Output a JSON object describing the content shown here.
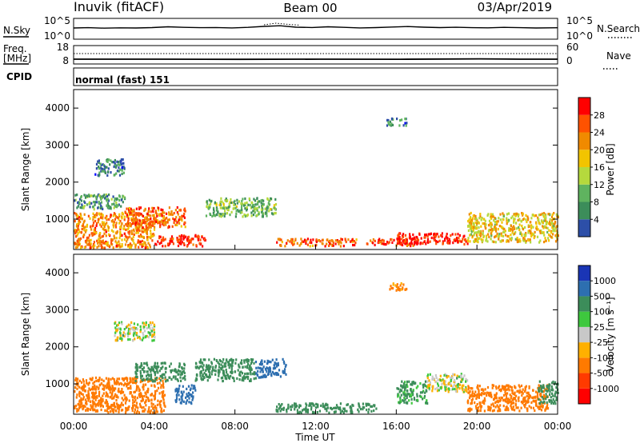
{
  "header": {
    "station": "Inuvik (fitACF)",
    "beam": "Beam 00",
    "date": "03/Apr/2019"
  },
  "noise_panel": {
    "left_label": "N.Sky",
    "right_label": "N.Search",
    "left_ticks": [
      "10^5",
      "10^0"
    ],
    "right_ticks": [
      "10^5",
      "10^0"
    ]
  },
  "freq_panel": {
    "left_label_top": "Freq.",
    "left_label_bottom": "[MHz]",
    "right_label": "Nave",
    "left_ticks": [
      "18",
      "8"
    ],
    "right_ticks": [
      "60",
      "0"
    ]
  },
  "cpid_panel": {
    "label": "CPID",
    "text": "normal (fast) 151"
  },
  "range_axis": {
    "label": "Slant Range [km]",
    "ticks": [
      1000,
      2000,
      3000,
      4000
    ],
    "ylim": [
      180,
      4500
    ]
  },
  "time_axis": {
    "label": "Time UT",
    "ticks": [
      "00:00",
      "04:00",
      "08:00",
      "12:00",
      "16:00",
      "20:00",
      "00:00"
    ],
    "xlim_hours": [
      0,
      24
    ]
  },
  "colors": {
    "power_scale": [
      "#0000ff",
      "#2d4fa8",
      "#3c8d5a",
      "#5fb35f",
      "#b5d93d",
      "#f2c400",
      "#f08a00",
      "#ff5200",
      "#ff0000"
    ],
    "velocity_scale": [
      "#ff0000",
      "#ff3a00",
      "#ff7a00",
      "#ffb000",
      "#c8c8c8",
      "#3ec83e",
      "#3c8d5a",
      "#2d6fb0",
      "#1a35b5"
    ]
  },
  "chart_data": [
    {
      "type": "heatmap",
      "name": "power",
      "colorbar_label": "Power [dB]",
      "colorbar_ticks": [
        "4",
        "8",
        "12",
        "16",
        "20",
        "24",
        "28"
      ],
      "colorbar_range": [
        0,
        30
      ],
      "x_unit": "hours UT",
      "y_unit": "km",
      "regions": [
        {
          "t": [
            0.0,
            4.0
          ],
          "r": [
            250,
            1200
          ],
          "level": 22
        },
        {
          "t": [
            0.0,
            2.5
          ],
          "r": [
            1300,
            1700
          ],
          "level": 10
        },
        {
          "t": [
            2.5,
            5.5
          ],
          "r": [
            800,
            1350
          ],
          "level": 24
        },
        {
          "t": [
            4.0,
            6.5
          ],
          "r": [
            300,
            600
          ],
          "level": 28
        },
        {
          "t": [
            6.5,
            10.0
          ],
          "r": [
            1100,
            1600
          ],
          "level": 12
        },
        {
          "t": [
            10.0,
            14.0
          ],
          "r": [
            300,
            500
          ],
          "level": 24
        },
        {
          "t": [
            14.5,
            17.0
          ],
          "r": [
            300,
            500
          ],
          "level": 26
        },
        {
          "t": [
            16.0,
            19.5
          ],
          "r": [
            350,
            650
          ],
          "level": 28
        },
        {
          "t": [
            19.5,
            24.0
          ],
          "r": [
            400,
            1200
          ],
          "level": 18
        },
        {
          "t": [
            15.5,
            16.5
          ],
          "r": [
            3550,
            3750
          ],
          "level": 8
        },
        {
          "t": [
            1.0,
            2.5
          ],
          "r": [
            2200,
            2650
          ],
          "level": 8
        }
      ]
    },
    {
      "type": "heatmap",
      "name": "velocity",
      "colorbar_label": "Velocity [m s⁻¹]",
      "colorbar_ticks": [
        "-1000",
        "-500",
        "-100",
        "-25",
        "25",
        "100",
        "500",
        "1000"
      ],
      "colorbar_range": [
        -1000,
        1000
      ],
      "x_unit": "hours UT",
      "y_unit": "km",
      "regions": [
        {
          "t": [
            0.0,
            4.5
          ],
          "r": [
            250,
            1200
          ],
          "value": -300
        },
        {
          "t": [
            2.0,
            4.0
          ],
          "r": [
            2200,
            2700
          ],
          "value": 10
        },
        {
          "t": [
            3.0,
            5.5
          ],
          "r": [
            1100,
            1600
          ],
          "value": 350
        },
        {
          "t": [
            5.0,
            6.0
          ],
          "r": [
            500,
            1000
          ],
          "value": 900
        },
        {
          "t": [
            6.0,
            9.0
          ],
          "r": [
            1100,
            1700
          ],
          "value": 300
        },
        {
          "t": [
            9.0,
            10.5
          ],
          "r": [
            1200,
            1700
          ],
          "value": 900
        },
        {
          "t": [
            10.0,
            15.0
          ],
          "r": [
            250,
            500
          ],
          "value": 300
        },
        {
          "t": [
            15.5,
            16.5
          ],
          "r": [
            3550,
            3750
          ],
          "value": -150
        },
        {
          "t": [
            16.0,
            17.5
          ],
          "r": [
            500,
            1100
          ],
          "value": 150
        },
        {
          "t": [
            17.5,
            19.5
          ],
          "r": [
            800,
            1300
          ],
          "value": 10
        },
        {
          "t": [
            19.5,
            23.5
          ],
          "r": [
            300,
            1000
          ],
          "value": -300
        },
        {
          "t": [
            23.0,
            24.0
          ],
          "r": [
            500,
            1100
          ],
          "value": 300
        }
      ]
    }
  ]
}
